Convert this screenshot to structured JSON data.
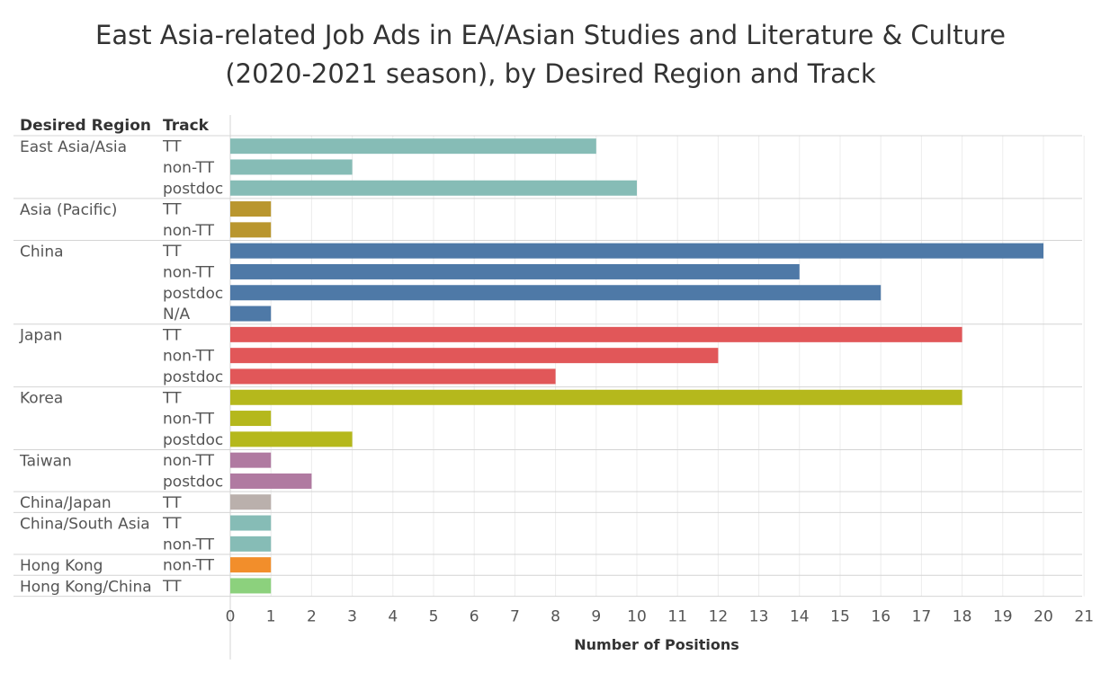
{
  "title_lines": [
    "East Asia-related Job Ads in EA/Asian Studies and Literature & Culture",
    "(2020-2021 season), by Desired Region and Track"
  ],
  "chart_data": {
    "type": "bar",
    "orientation": "horizontal",
    "row_headers": [
      "Desired Region",
      "Track"
    ],
    "xlabel": "Number of Positions",
    "xlim": [
      0,
      21
    ],
    "xticks": [
      0,
      1,
      2,
      3,
      4,
      5,
      6,
      7,
      8,
      9,
      10,
      11,
      12,
      13,
      14,
      15,
      16,
      17,
      18,
      19,
      20,
      21
    ],
    "grid": true,
    "groups": [
      {
        "region": "East Asia/Asia",
        "color": "#86bcb6",
        "bars": [
          {
            "track": "TT",
            "value": 9
          },
          {
            "track": "non-TT",
            "value": 3
          },
          {
            "track": "postdoc",
            "value": 10
          }
        ]
      },
      {
        "region": "Asia (Pacific)",
        "color": "#b9962e",
        "bars": [
          {
            "track": "TT",
            "value": 1
          },
          {
            "track": "non-TT",
            "value": 1
          }
        ]
      },
      {
        "region": "China",
        "color": "#4e79a7",
        "bars": [
          {
            "track": "TT",
            "value": 20
          },
          {
            "track": "non-TT",
            "value": 14
          },
          {
            "track": "postdoc",
            "value": 16
          },
          {
            "track": "N/A",
            "value": 1
          }
        ]
      },
      {
        "region": "Japan",
        "color": "#e15759",
        "bars": [
          {
            "track": "TT",
            "value": 18
          },
          {
            "track": "non-TT",
            "value": 12
          },
          {
            "track": "postdoc",
            "value": 8
          }
        ]
      },
      {
        "region": "Korea",
        "color": "#b5b81c",
        "bars": [
          {
            "track": "TT",
            "value": 18
          },
          {
            "track": "non-TT",
            "value": 1
          },
          {
            "track": "postdoc",
            "value": 3
          }
        ]
      },
      {
        "region": "Taiwan",
        "color": "#b07aa1",
        "bars": [
          {
            "track": "non-TT",
            "value": 1
          },
          {
            "track": "postdoc",
            "value": 2
          }
        ]
      },
      {
        "region": "China/Japan",
        "color": "#bab0ac",
        "bars": [
          {
            "track": "TT",
            "value": 1
          }
        ]
      },
      {
        "region": "China/South Asia",
        "color": "#86bcb6",
        "bars": [
          {
            "track": "TT",
            "value": 1
          },
          {
            "track": "non-TT",
            "value": 1
          }
        ]
      },
      {
        "region": "Hong Kong",
        "color": "#f28e2b",
        "bars": [
          {
            "track": "non-TT",
            "value": 1
          }
        ]
      },
      {
        "region": "Hong Kong/China",
        "color": "#8cd17d",
        "bars": [
          {
            "track": "TT",
            "value": 1
          }
        ]
      }
    ]
  }
}
